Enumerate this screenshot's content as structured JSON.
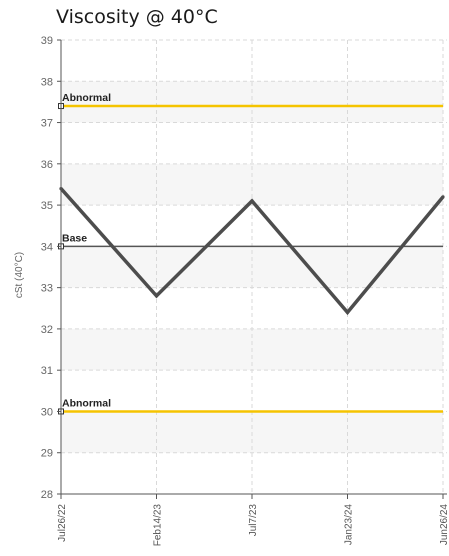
{
  "chart_data": {
    "type": "line",
    "title": "Viscosity @ 40°C",
    "ylabel": "cSt (40°C)",
    "xlabel": "",
    "ylim": [
      28,
      39
    ],
    "yticks": [
      28,
      29,
      30,
      31,
      32,
      33,
      34,
      35,
      36,
      37,
      38,
      39
    ],
    "categories": [
      "Jul26/22",
      "Feb14/23",
      "Jul7/23",
      "Jan23/24",
      "Jun26/24"
    ],
    "series": [
      {
        "values": [
          35.4,
          32.8,
          35.1,
          32.4,
          35.2
        ]
      }
    ],
    "reference_lines": [
      {
        "label": "Abnormal",
        "value": 37.4,
        "color": "#f5c400"
      },
      {
        "label": "Base",
        "value": 34.0,
        "color": "#555555"
      },
      {
        "label": "Abnormal",
        "value": 30.0,
        "color": "#f5c400"
      }
    ],
    "grid": true,
    "colors": {
      "series": "#4d4d4d",
      "band": "#f6f6f6",
      "grid": "#d9d9d9",
      "axis": "#555555"
    }
  }
}
